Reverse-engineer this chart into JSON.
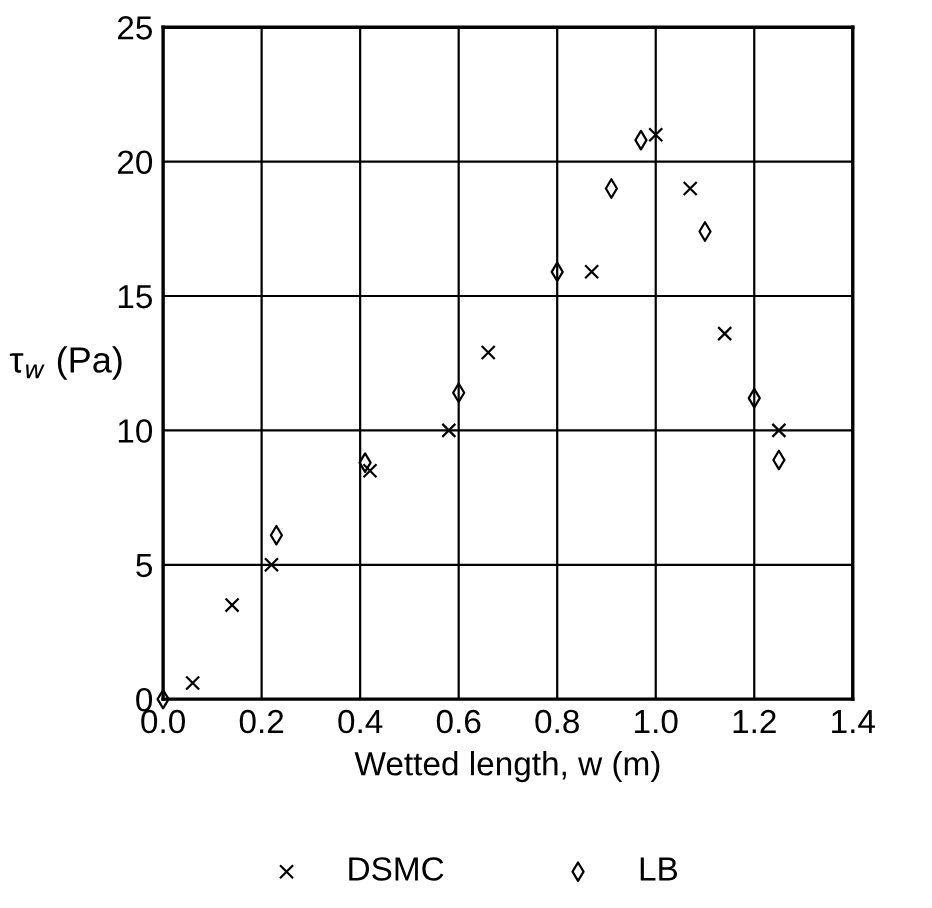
{
  "chart_data": {
    "type": "scatter",
    "xlabel": "Wetted length, w (m)",
    "ylabel": "τ$_{w}$ (Pa)",
    "xlim": [
      0,
      1.4
    ],
    "ylim": [
      0,
      25
    ],
    "xticks": [
      {
        "value": 0,
        "label": "0.0"
      },
      {
        "value": 0.2,
        "label": "0.2"
      },
      {
        "value": 0.4,
        "label": "0.4"
      },
      {
        "value": 0.6,
        "label": "0.6"
      },
      {
        "value": 0.8,
        "label": "0.8"
      },
      {
        "value": 1,
        "label": "1.0"
      },
      {
        "value": 1.2,
        "label": "1.2"
      },
      {
        "value": 1.4,
        "label": "1.4"
      }
    ],
    "yticks": [
      0,
      5,
      10,
      15,
      20,
      25
    ],
    "grid": true,
    "legend": "bottom",
    "series": [
      {
        "name": "DSMC",
        "color": "#000000",
        "marker": "cross",
        "x": [
          0.06,
          0.14,
          0.22,
          0.42,
          0.58,
          0.66,
          0.87,
          1.0,
          1.07,
          1.14,
          1.25
        ],
        "values": [
          0.6,
          3.5,
          5.0,
          8.5,
          10.0,
          12.9,
          15.9,
          21.0,
          19.0,
          13.6,
          10.0
        ]
      },
      {
        "name": "LB",
        "color": "#000000",
        "marker": "diamond",
        "x": [
          0.0,
          0.23,
          0.41,
          0.6,
          0.8,
          0.91,
          0.97,
          1.1,
          1.2,
          1.25
        ],
        "values": [
          0.0,
          6.1,
          8.8,
          11.4,
          15.9,
          19.0,
          20.8,
          17.4,
          11.2,
          8.9
        ]
      }
    ]
  }
}
